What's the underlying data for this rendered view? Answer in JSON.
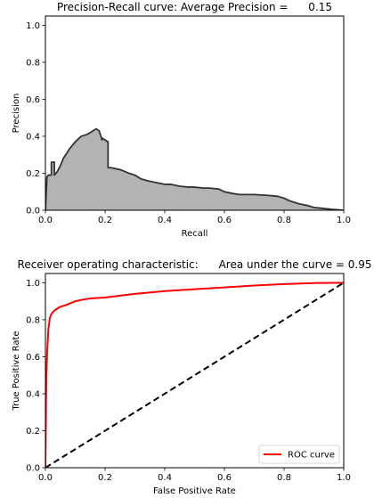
{
  "chart_data": [
    {
      "type": "area",
      "title": "Precision-Recall curve: Average Precision =      0.15",
      "xlabel": "Recall",
      "ylabel": "Precision",
      "xlim": [
        0.0,
        1.0
      ],
      "ylim": [
        0.0,
        1.05
      ],
      "xticks": [
        "0.0",
        "0.2",
        "0.4",
        "0.6",
        "0.8",
        "1.0"
      ],
      "yticks": [
        "0.0",
        "0.2",
        "0.4",
        "0.6",
        "0.8",
        "1.0"
      ],
      "grid": false,
      "legend": "none",
      "fill_color": "#b3b3b3",
      "line_color": "#333333",
      "series": [
        {
          "x": [
            0.0,
            0.005,
            0.01,
            0.02,
            0.02,
            0.03,
            0.03,
            0.04,
            0.05,
            0.06,
            0.08,
            0.1,
            0.12,
            0.14,
            0.15,
            0.16,
            0.17,
            0.18,
            0.19,
            0.19,
            0.21,
            0.21,
            0.22,
            0.25,
            0.28,
            0.3,
            0.32,
            0.34,
            0.37,
            0.4,
            0.42,
            0.45,
            0.48,
            0.5,
            0.53,
            0.55,
            0.58,
            0.6,
            0.63,
            0.65,
            0.7,
            0.75,
            0.78,
            0.8,
            0.82,
            0.85,
            0.88,
            0.9,
            0.93,
            0.96,
            1.0
          ],
          "y": [
            0.0,
            0.18,
            0.19,
            0.19,
            0.26,
            0.26,
            0.19,
            0.21,
            0.24,
            0.28,
            0.33,
            0.37,
            0.4,
            0.41,
            0.42,
            0.43,
            0.44,
            0.43,
            0.38,
            0.39,
            0.37,
            0.23,
            0.23,
            0.22,
            0.2,
            0.19,
            0.17,
            0.16,
            0.15,
            0.14,
            0.14,
            0.13,
            0.125,
            0.125,
            0.12,
            0.12,
            0.115,
            0.1,
            0.09,
            0.085,
            0.085,
            0.08,
            0.075,
            0.065,
            0.05,
            0.035,
            0.025,
            0.015,
            0.01,
            0.005,
            0.0
          ]
        }
      ]
    },
    {
      "type": "line",
      "title": "Receiver operating characteristic:      Area under the curve = 0.95",
      "xlabel": "False Positive Rate",
      "ylabel": "True Positive Rate",
      "xlim": [
        0.0,
        1.0
      ],
      "ylim": [
        0.0,
        1.05
      ],
      "xticks": [
        "0.0",
        "0.2",
        "0.4",
        "0.6",
        "0.8",
        "1.0"
      ],
      "yticks": [
        "0.0",
        "0.2",
        "0.4",
        "0.6",
        "0.8",
        "1.0"
      ],
      "grid": false,
      "legend": "lower right",
      "series": [
        {
          "name": "ROC curve",
          "color": "#ff0000",
          "x": [
            0.0,
            0.003,
            0.006,
            0.01,
            0.015,
            0.02,
            0.03,
            0.05,
            0.07,
            0.1,
            0.13,
            0.15,
            0.2,
            0.25,
            0.3,
            0.4,
            0.5,
            0.6,
            0.7,
            0.8,
            0.9,
            1.0
          ],
          "y": [
            0.0,
            0.5,
            0.63,
            0.75,
            0.81,
            0.83,
            0.85,
            0.87,
            0.88,
            0.9,
            0.91,
            0.915,
            0.92,
            0.93,
            0.94,
            0.955,
            0.965,
            0.975,
            0.985,
            0.993,
            0.998,
            1.0
          ]
        },
        {
          "color": "#000000",
          "dashed": true,
          "x": [
            0.0,
            1.0
          ],
          "y": [
            0.0,
            1.0
          ]
        }
      ]
    }
  ]
}
